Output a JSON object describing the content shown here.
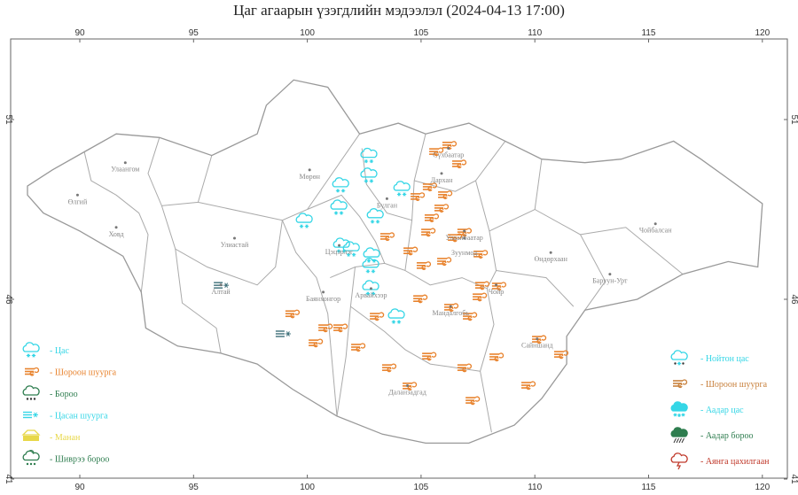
{
  "title": "Цаг агаарын үзэгдлийн мэдээлэл (2024-04-13 17:00)",
  "axes": {
    "lon_ticks": [
      90,
      95,
      100,
      105,
      110,
      115,
      120
    ],
    "lat_ticks": [
      51,
      46,
      41
    ],
    "lon_range": [
      86.9,
      121.1
    ],
    "lat_range": [
      41,
      53.2
    ]
  },
  "colors": {
    "snow": "#35d6e6",
    "dust_storm": "#e8822c",
    "rain": "#2e7d4f",
    "blowing_snow": "#35d6e6",
    "fog": "#f2e14a",
    "drizzle": "#2e7d4f",
    "wet_snow": "#35d6e6",
    "snow_shower": "#35d6e6",
    "rain_shower": "#2e7d4f",
    "thunderstorm": "#c0392b",
    "border": "#aaaaaa"
  },
  "legend_left": [
    {
      "icon": "snow-icon",
      "label": "- Цас",
      "color": "#35d6e6"
    },
    {
      "icon": "dust-storm-icon",
      "label": "- Шороон шуурга",
      "color": "#e8822c"
    },
    {
      "icon": "rain-icon",
      "label": "- Бороо",
      "color": "#2e7d4f"
    },
    {
      "icon": "blowing-snow-icon",
      "label": "- Цасан шуурга",
      "color": "#35d6e6"
    },
    {
      "icon": "fog-icon",
      "label": "- Манан",
      "color": "#e8d84a"
    },
    {
      "icon": "drizzle-icon",
      "label": "- Шиврээ бороо",
      "color": "#2e7d4f"
    }
  ],
  "legend_right": [
    {
      "icon": "wet-snow-icon",
      "label": "- Нойтон цас",
      "color": "#35d6e6"
    },
    {
      "icon": "dust-storm-icon",
      "label": "- Шороон шуурга",
      "color": "#c8803c"
    },
    {
      "icon": "snow-shower-icon",
      "label": "- Аадар цас",
      "color": "#35d6e6"
    },
    {
      "icon": "rain-shower-icon",
      "label": "- Аадар бороо",
      "color": "#2e7d4f"
    },
    {
      "icon": "thunderstorm-icon",
      "label": "- Аянга цахилгаан",
      "color": "#c0392b"
    }
  ],
  "cities": [
    {
      "name": "Улаангом",
      "lon": 92.0,
      "lat": 49.8
    },
    {
      "name": "Өлгий",
      "lon": 89.9,
      "lat": 48.9
    },
    {
      "name": "Ховд",
      "lon": 91.6,
      "lat": 48.0
    },
    {
      "name": "Улиастай",
      "lon": 96.8,
      "lat": 47.7
    },
    {
      "name": "Алтай",
      "lon": 96.2,
      "lat": 46.4
    },
    {
      "name": "Мөрөн",
      "lon": 100.1,
      "lat": 49.6
    },
    {
      "name": "Булган",
      "lon": 103.5,
      "lat": 48.8
    },
    {
      "name": "Сүхбаатар",
      "lon": 106.2,
      "lat": 50.2
    },
    {
      "name": "Дархан",
      "lon": 105.9,
      "lat": 49.5
    },
    {
      "name": "Цэцэрлэг",
      "lon": 101.4,
      "lat": 47.5
    },
    {
      "name": "Баянхонгор",
      "lon": 100.7,
      "lat": 46.2
    },
    {
      "name": "Арвайхээр",
      "lon": 102.8,
      "lat": 46.3
    },
    {
      "name": "Улаанбаатар",
      "lon": 106.9,
      "lat": 47.9
    },
    {
      "name": "Зуунмод",
      "lon": 106.9,
      "lat": 47.7
    },
    {
      "name": "Мандалгобь",
      "lon": 106.3,
      "lat": 45.8
    },
    {
      "name": "Чойр",
      "lon": 108.3,
      "lat": 46.4
    },
    {
      "name": "Даланзадгад",
      "lon": 104.4,
      "lat": 43.6
    },
    {
      "name": "Сайншанд",
      "lon": 110.1,
      "lat": 44.9
    },
    {
      "name": "Өндөрхаан",
      "lon": 110.7,
      "lat": 47.3
    },
    {
      "name": "Чойбалсан",
      "lon": 115.3,
      "lat": 48.1
    },
    {
      "name": "Баруун-Урт",
      "lon": 113.3,
      "lat": 46.7
    }
  ],
  "observations": {
    "snow": [
      [
        102.7,
        50.0
      ],
      [
        102.7,
        49.45
      ],
      [
        101.46,
        49.18
      ],
      [
        104.15,
        49.08
      ],
      [
        101.38,
        48.56
      ],
      [
        102.98,
        48.32
      ],
      [
        99.86,
        48.19
      ],
      [
        101.5,
        47.5
      ],
      [
        101.93,
        47.4
      ],
      [
        102.82,
        47.23
      ],
      [
        102.78,
        46.94
      ],
      [
        102.78,
        46.32
      ],
      [
        103.91,
        45.53
      ]
    ],
    "dust_storm": [
      [
        105.63,
        50.11
      ],
      [
        106.21,
        50.29
      ],
      [
        106.64,
        49.77
      ],
      [
        105.35,
        49.13
      ],
      [
        106.02,
        48.91
      ],
      [
        104.81,
        48.86
      ],
      [
        105.86,
        48.54
      ],
      [
        105.43,
        48.27
      ],
      [
        103.48,
        47.75
      ],
      [
        105.28,
        47.87
      ],
      [
        106.87,
        47.87
      ],
      [
        106.45,
        47.72
      ],
      [
        107.58,
        47.26
      ],
      [
        104.5,
        47.35
      ],
      [
        105.08,
        46.94
      ],
      [
        105.98,
        47.06
      ],
      [
        107.65,
        46.39
      ],
      [
        108.39,
        46.37
      ],
      [
        107.54,
        46.07
      ],
      [
        104.93,
        46.02
      ],
      [
        106.29,
        45.78
      ],
      [
        107.11,
        45.53
      ],
      [
        103.02,
        45.53
      ],
      [
        101.42,
        45.21
      ],
      [
        100.76,
        45.21
      ],
      [
        99.31,
        45.6
      ],
      [
        100.33,
        44.79
      ],
      [
        102.2,
        44.67
      ],
      [
        105.32,
        44.42
      ],
      [
        106.87,
        44.1
      ],
      [
        103.56,
        44.1
      ],
      [
        104.46,
        43.59
      ],
      [
        107.23,
        43.19
      ],
      [
        108.28,
        44.4
      ],
      [
        110.15,
        44.89
      ],
      [
        111.12,
        44.47
      ],
      [
        109.68,
        43.61
      ]
    ],
    "blowing_snow": [
      [
        96.24,
        46.39
      ],
      [
        98.96,
        45.04
      ]
    ]
  },
  "country_outline": [
    [
      87.7,
      49.15
    ],
    [
      88.8,
      49.6
    ],
    [
      90.2,
      50.1
    ],
    [
      91.6,
      50.6
    ],
    [
      93.5,
      50.5
    ],
    [
      95.8,
      50.0
    ],
    [
      97.8,
      50.6
    ],
    [
      98.2,
      51.4
    ],
    [
      99.4,
      52.1
    ],
    [
      100.9,
      51.9
    ],
    [
      102.3,
      50.6
    ],
    [
      104.0,
      50.9
    ],
    [
      105.2,
      50.6
    ],
    [
      107.1,
      50.9
    ],
    [
      108.7,
      50.4
    ],
    [
      110.3,
      49.9
    ],
    [
      112.2,
      49.8
    ],
    [
      113.8,
      49.9
    ],
    [
      116.1,
      50.4
    ],
    [
      117.3,
      49.9
    ],
    [
      118.4,
      49.4
    ],
    [
      120.0,
      48.66
    ],
    [
      119.8,
      46.9
    ],
    [
      118.5,
      47.05
    ],
    [
      116.5,
      46.7
    ],
    [
      114.5,
      46.0
    ],
    [
      112.2,
      45.7
    ],
    [
      111.4,
      44.97
    ],
    [
      111.4,
      44.2
    ],
    [
      110.3,
      43.24
    ],
    [
      109.1,
      42.5
    ],
    [
      107.1,
      42.0
    ],
    [
      105.2,
      42.0
    ],
    [
      103.3,
      42.25
    ],
    [
      101.3,
      42.75
    ],
    [
      99.35,
      43.5
    ],
    [
      97.8,
      44.2
    ],
    [
      96.2,
      44.5
    ],
    [
      94.3,
      44.7
    ],
    [
      92.9,
      45.2
    ],
    [
      92.7,
      46.2
    ],
    [
      91.9,
      47.2
    ],
    [
      90.0,
      47.9
    ],
    [
      88.4,
      48.4
    ],
    [
      87.7,
      48.9
    ]
  ],
  "province_borders": [
    [
      [
        90.2,
        50.1
      ],
      [
        90.5,
        49.3
      ],
      [
        91.6,
        48.9
      ],
      [
        92.6,
        48.4
      ],
      [
        93.0,
        47.8
      ],
      [
        92.7,
        46.2
      ]
    ],
    [
      [
        93.5,
        50.5
      ],
      [
        93.0,
        49.5
      ],
      [
        93.6,
        48.6
      ],
      [
        95.2,
        48.7
      ],
      [
        95.8,
        50.0
      ]
    ],
    [
      [
        93.6,
        48.6
      ],
      [
        94.2,
        47.4
      ],
      [
        95.6,
        46.9
      ],
      [
        97.8,
        46.4
      ],
      [
        98.6,
        46.9
      ],
      [
        98.9,
        48.2
      ]
    ],
    [
      [
        95.2,
        48.7
      ],
      [
        98.9,
        48.2
      ],
      [
        100.0,
        48.5
      ],
      [
        102.3,
        50.6
      ]
    ],
    [
      [
        98.9,
        48.2
      ],
      [
        99.5,
        47.3
      ],
      [
        100.4,
        46.6
      ],
      [
        100.9,
        45.6
      ],
      [
        101.3,
        42.75
      ]
    ],
    [
      [
        94.2,
        47.4
      ],
      [
        94.5,
        45.9
      ],
      [
        96.0,
        45.2
      ],
      [
        96.2,
        44.5
      ]
    ],
    [
      [
        100.0,
        48.5
      ],
      [
        101.5,
        48.9
      ],
      [
        102.3,
        48.3
      ],
      [
        103.0,
        47.6
      ],
      [
        103.4,
        47.0
      ]
    ],
    [
      [
        102.4,
        50.2
      ],
      [
        102.6,
        49.2
      ],
      [
        103.5,
        48.4
      ],
      [
        104.6,
        48.2
      ],
      [
        104.7,
        49.3
      ],
      [
        105.2,
        50.6
      ]
    ],
    [
      [
        104.7,
        49.3
      ],
      [
        106.5,
        49.0
      ],
      [
        107.4,
        49.3
      ],
      [
        108.7,
        50.4
      ]
    ],
    [
      [
        104.6,
        48.2
      ],
      [
        104.3,
        46.8
      ],
      [
        103.4,
        47.0
      ],
      [
        102.1,
        46.9
      ],
      [
        101.0,
        46.6
      ]
    ],
    [
      [
        102.1,
        46.9
      ],
      [
        101.9,
        45.8
      ],
      [
        101.7,
        44.4
      ],
      [
        101.3,
        42.75
      ]
    ],
    [
      [
        104.3,
        46.8
      ],
      [
        105.4,
        46.4
      ],
      [
        106.8,
        46.6
      ],
      [
        107.9,
        46.3
      ],
      [
        108.2,
        45.3
      ],
      [
        107.6,
        44.0
      ],
      [
        108.1,
        42.3
      ]
    ],
    [
      [
        101.9,
        45.8
      ],
      [
        103.4,
        45.1
      ],
      [
        104.3,
        44.6
      ],
      [
        105.4,
        44.2
      ],
      [
        107.6,
        44.0
      ]
    ],
    [
      [
        107.4,
        49.3
      ],
      [
        108.0,
        47.9
      ],
      [
        108.3,
        46.8
      ],
      [
        107.9,
        46.3
      ]
    ],
    [
      [
        108.0,
        47.9
      ],
      [
        110.0,
        48.5
      ],
      [
        112.0,
        47.8
      ],
      [
        113.1,
        46.5
      ],
      [
        112.2,
        45.7
      ]
    ],
    [
      [
        110.0,
        48.5
      ],
      [
        110.3,
        49.9
      ]
    ],
    [
      [
        108.3,
        46.8
      ],
      [
        110.5,
        46.6
      ],
      [
        111.7,
        45.8
      ]
    ],
    [
      [
        112.0,
        47.8
      ],
      [
        114.0,
        48.0
      ],
      [
        116.5,
        46.7
      ]
    ]
  ]
}
